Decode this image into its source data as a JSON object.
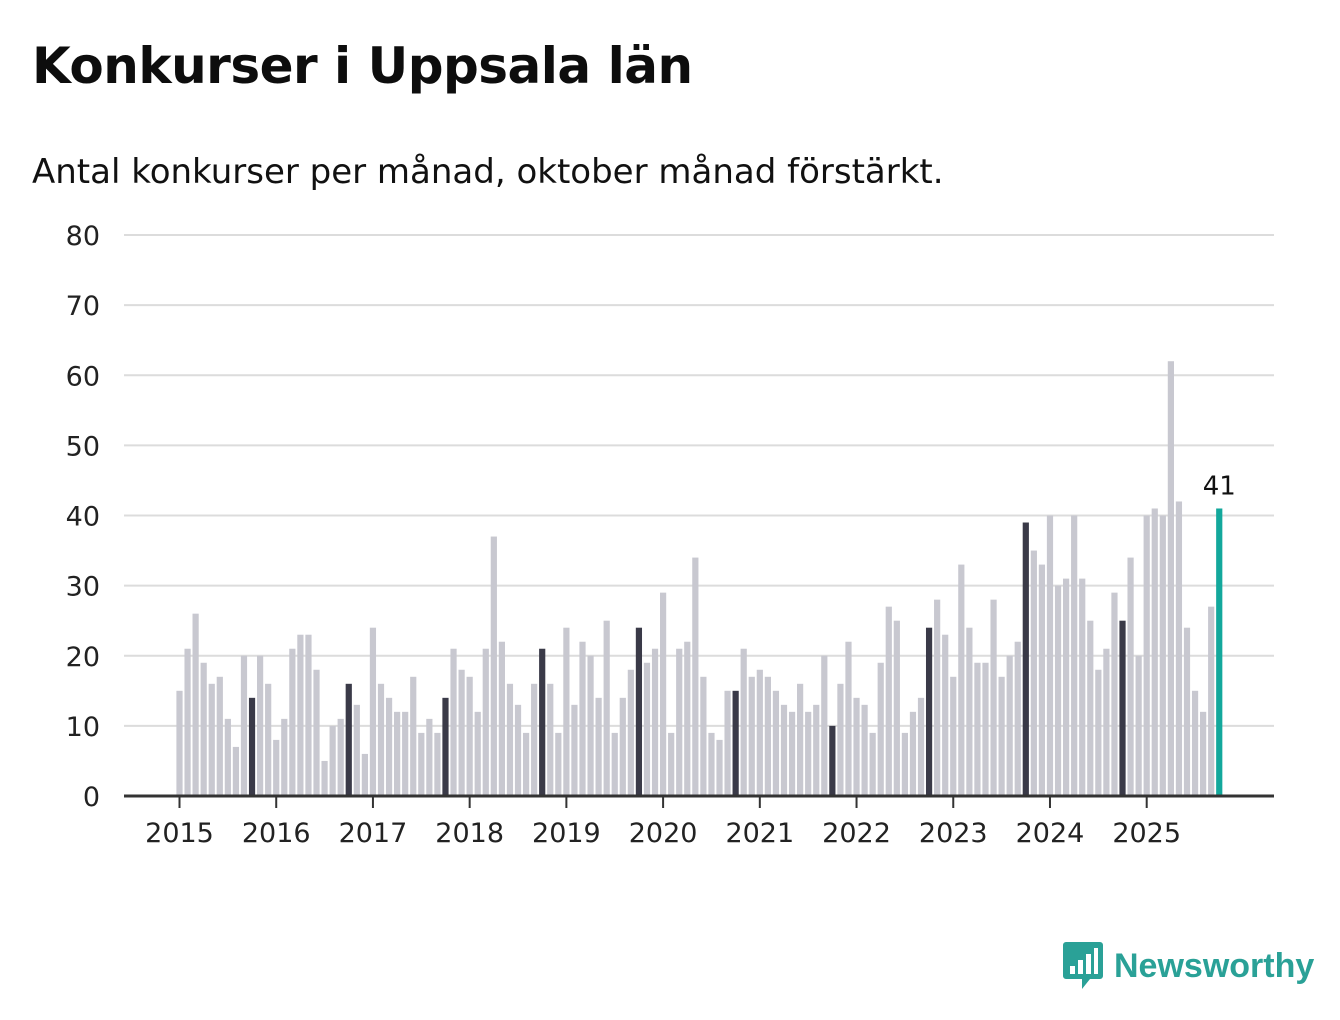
{
  "title": "Konkurser i Uppsala län",
  "subtitle": "Antal konkurser per månad, oktober månad förstärkt.",
  "brand": {
    "name": "Newsworthy",
    "color": "#2aa197"
  },
  "colors": {
    "bar": "#c8c8d0",
    "highlight": "#3a3a48",
    "latest": "#13a89c",
    "grid": "#dcdcdc",
    "axis": "#333333"
  },
  "chart_data": {
    "type": "bar",
    "title": "Konkurser i Uppsala län",
    "xlabel": "",
    "ylabel": "",
    "ylim": [
      0,
      80
    ],
    "yticks": [
      "0",
      "10",
      "20",
      "30",
      "40",
      "50",
      "60",
      "70",
      "80"
    ],
    "xtick_labels": [
      "2015",
      "2016",
      "2017",
      "2018",
      "2019",
      "2020",
      "2021",
      "2022",
      "2023",
      "2024",
      "2025"
    ],
    "start": "2015-01",
    "highlight_month": "oktober",
    "annotation": {
      "label": "41",
      "month": "2025-10"
    },
    "values": [
      15,
      21,
      26,
      19,
      16,
      17,
      11,
      7,
      20,
      14,
      20,
      16,
      8,
      11,
      21,
      23,
      23,
      18,
      5,
      10,
      11,
      16,
      13,
      6,
      24,
      16,
      14,
      12,
      12,
      17,
      9,
      11,
      9,
      14,
      21,
      18,
      17,
      12,
      21,
      37,
      22,
      16,
      13,
      9,
      16,
      21,
      16,
      9,
      24,
      13,
      22,
      20,
      14,
      25,
      9,
      14,
      18,
      24,
      19,
      21,
      29,
      9,
      21,
      22,
      34,
      17,
      9,
      8,
      15,
      15,
      21,
      17,
      18,
      17,
      15,
      13,
      12,
      16,
      12,
      13,
      20,
      10,
      16,
      22,
      14,
      13,
      9,
      19,
      27,
      25,
      9,
      12,
      14,
      24,
      28,
      23,
      17,
      33,
      24,
      19,
      19,
      28,
      17,
      20,
      22,
      39,
      35,
      33,
      40,
      30,
      31,
      40,
      31,
      25,
      18,
      21,
      29,
      25,
      34,
      20,
      40,
      41,
      40,
      62,
      42,
      24,
      15,
      12,
      27,
      41
    ]
  }
}
